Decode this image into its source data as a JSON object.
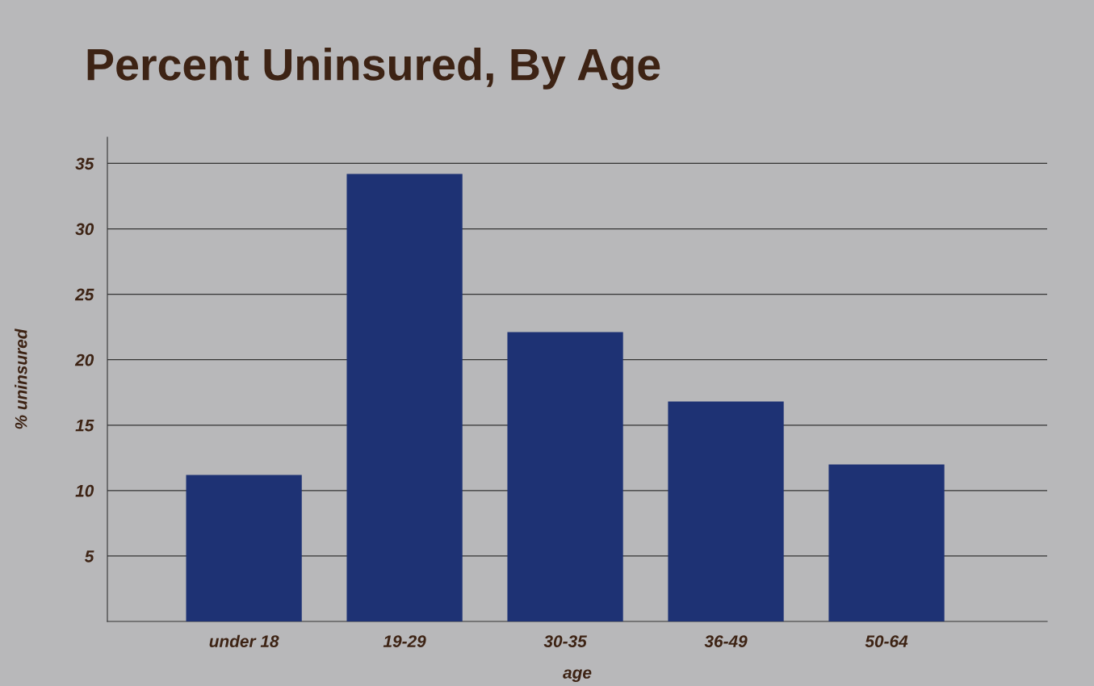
{
  "chart_data": {
    "type": "bar",
    "title": "Percent Uninsured, By Age",
    "xlabel": "age",
    "ylabel": "% uninsured",
    "categories": [
      "under 18",
      "19-29",
      "30-35",
      "36-49",
      "50-64"
    ],
    "values": [
      11.2,
      34.2,
      22.1,
      16.8,
      12.0
    ],
    "color": "#1e3274",
    "ylim": [
      0,
      37
    ],
    "yticks": [
      5,
      10,
      15,
      20,
      25,
      30,
      35
    ],
    "grid": "y",
    "legend": false
  }
}
